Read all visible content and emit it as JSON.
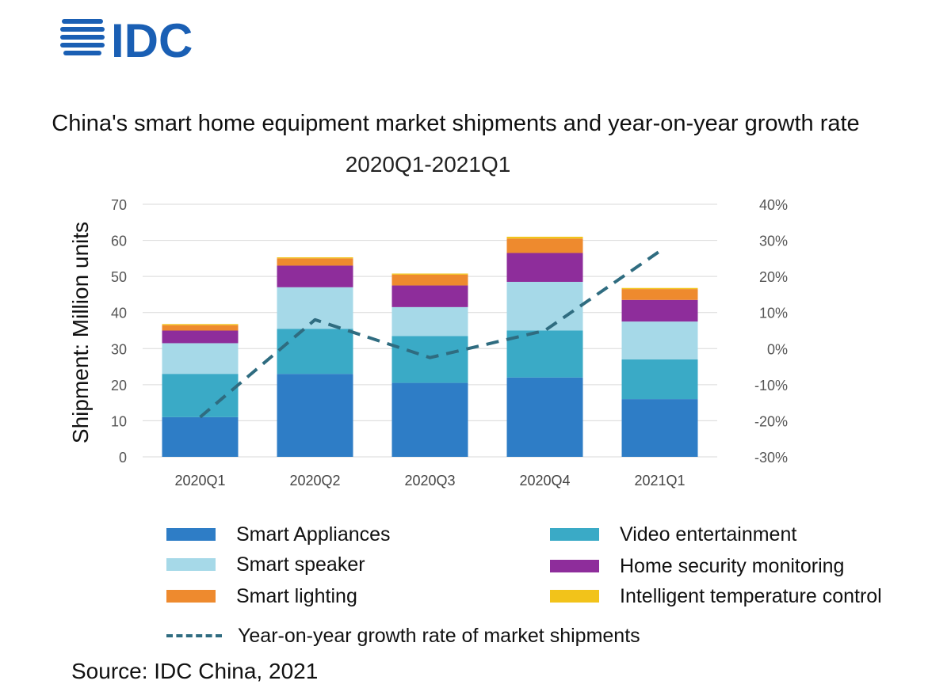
{
  "logo": {
    "text": "IDC",
    "color": "#1a5fb4"
  },
  "chart_data": {
    "type": "bar",
    "stacked": true,
    "title": "China's smart home equipment market shipments and year-on-year growth rate",
    "subtitle": "2020Q1-2021Q1",
    "ylabel": "Shipment: Million units",
    "ylim": [
      0,
      70
    ],
    "yticks": [
      "0",
      "10",
      "20",
      "30",
      "40",
      "50",
      "60",
      "70"
    ],
    "y2lim": [
      -30,
      40
    ],
    "y2ticks": [
      "-30%",
      "-20%",
      "-10%",
      "0%",
      "10%",
      "20%",
      "30%",
      "40%"
    ],
    "grid": true,
    "legend_position": "bottom",
    "categories": [
      "2020Q1",
      "2020Q2",
      "2020Q3",
      "2020Q4",
      "2021Q1"
    ],
    "series": [
      {
        "name": "Smart Appliances",
        "color": "#2e7dc6",
        "values": [
          11,
          23,
          20.5,
          22,
          16
        ]
      },
      {
        "name": "Video entertainment",
        "color": "#3aaac6",
        "values": [
          12,
          12.5,
          13,
          13,
          11
        ]
      },
      {
        "name": "Smart speaker",
        "color": "#a6d9e8",
        "values": [
          8.5,
          11.5,
          8,
          13.5,
          10.5
        ]
      },
      {
        "name": "Home security monitoring",
        "color": "#8e2d9b",
        "values": [
          3.5,
          6,
          6,
          8,
          6
        ]
      },
      {
        "name": "Smart lighting",
        "color": "#ee8a2e",
        "values": [
          1.5,
          2,
          3,
          4,
          3
        ]
      },
      {
        "name": "Intelligent temperature control",
        "color": "#f2c31a",
        "values": [
          0.3,
          0.3,
          0.3,
          0.5,
          0.3
        ]
      }
    ],
    "line": {
      "name": "Year-on-year growth rate of market shipments",
      "color": "#2f6c80",
      "axis": "right",
      "values": [
        -19,
        8,
        -2.5,
        5,
        27
      ]
    },
    "source": "Source: IDC China, 2021"
  }
}
